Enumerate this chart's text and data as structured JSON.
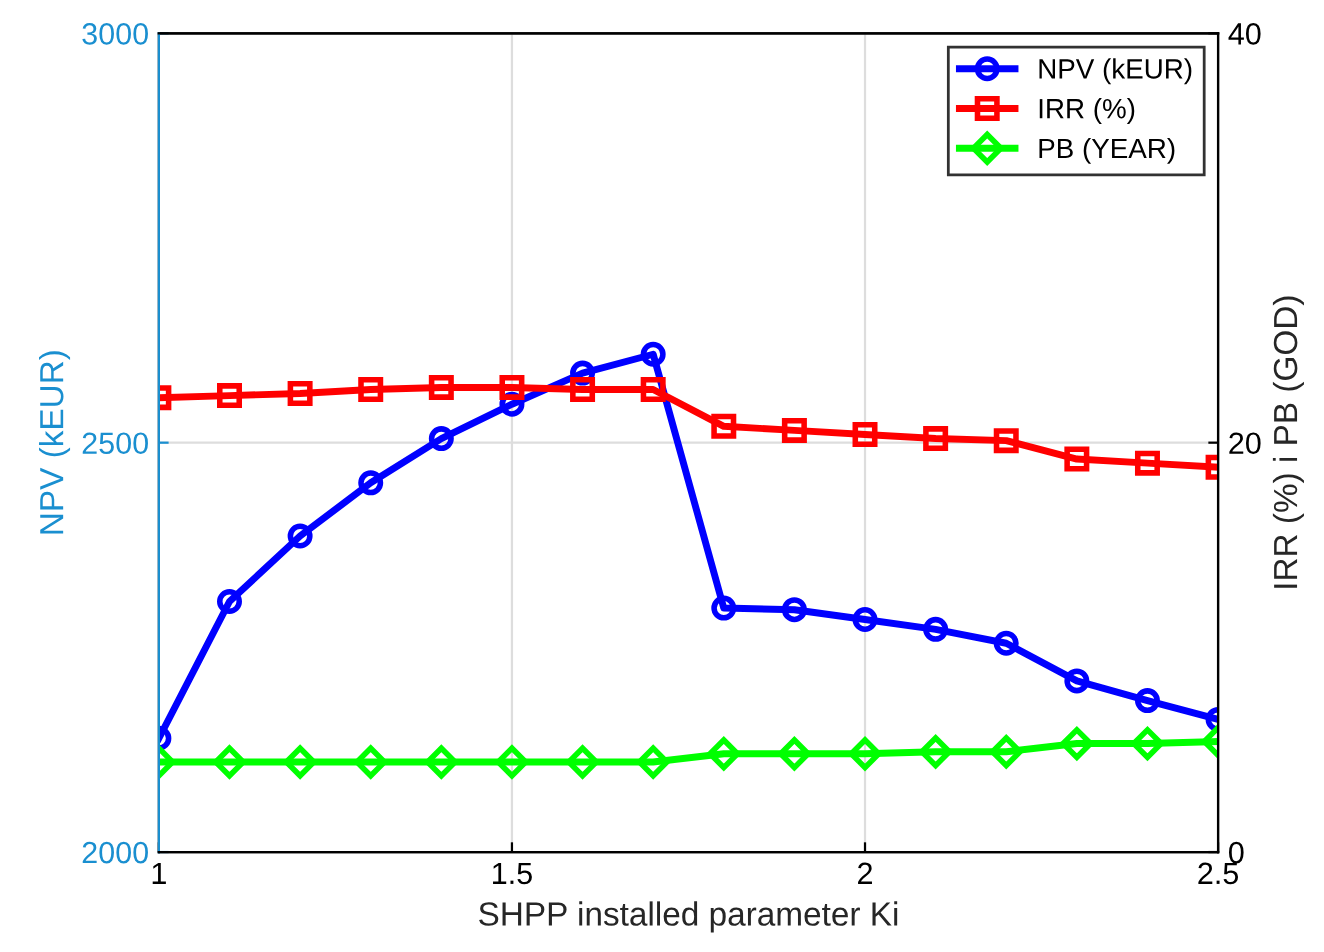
{
  "chart_data": {
    "type": "line",
    "xlabel": "SHPP installed parameter Ki",
    "ylabel": "NPV (kEUR)",
    "y2label": "IRR (%) i PB (GOD)",
    "x": [
      1,
      1.1,
      1.2,
      1.3,
      1.4,
      1.5,
      1.6,
      1.7,
      1.8,
      1.9,
      2,
      2.1,
      2.2,
      2.3,
      2.4,
      2.5
    ],
    "series": [
      {
        "name": "NPV (kEUR)",
        "color": "#0000ff",
        "marker": "circle",
        "values": [
          2139,
          2306,
          2386,
          2451,
          2505,
          2547,
          2585,
          2608,
          2298,
          2296,
          2284,
          2272,
          2255,
          2209,
          2185,
          2162
        ]
      },
      {
        "name": "IRR (%)",
        "color": "#ff0000",
        "marker": "square",
        "axis": "y2",
        "values": [
          22.2,
          22.3,
          22.4,
          22.6,
          22.7,
          22.7,
          22.6,
          22.6,
          20.8,
          20.6,
          20.4,
          20.2,
          20.1,
          19.2,
          19.0,
          18.8
        ]
      },
      {
        "name": "PB (YEAR)",
        "color": "#00ff00",
        "marker": "diamond",
        "axis": "y2",
        "values": [
          4.4,
          4.4,
          4.4,
          4.4,
          4.4,
          4.4,
          4.4,
          4.4,
          4.8,
          4.8,
          4.8,
          4.9,
          4.9,
          5.3,
          5.3,
          5.4
        ]
      }
    ],
    "xlim": [
      1,
      2.5
    ],
    "xticks": [
      1,
      1.5,
      2,
      2.5
    ],
    "ylim": [
      2000,
      3000
    ],
    "yticks": [
      2000,
      2500,
      3000
    ],
    "y2lim": [
      0,
      40
    ],
    "y2ticks": [
      0,
      20,
      40
    ],
    "grid": true,
    "legend": "top right",
    "line_style": "solid"
  }
}
